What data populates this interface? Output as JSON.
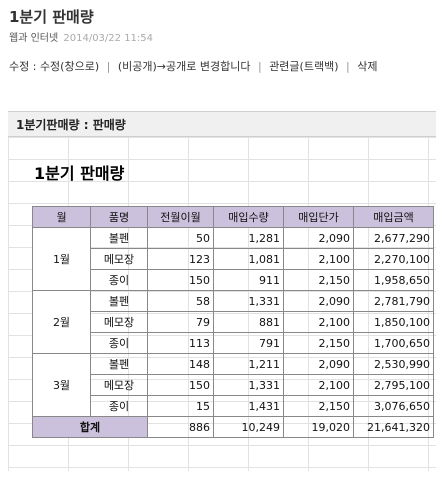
{
  "post": {
    "title": "1분기 판매량",
    "category": "웹과 인터넷",
    "date": "2014/03/22 11:54"
  },
  "actions": {
    "edit_label": "수정 : 수정(창으로)",
    "privacy_label": "(비공개)→공개로 변경합니다",
    "related_label": "관련글(트랙백)",
    "delete_label": "삭제"
  },
  "sheet": {
    "header": "1분기판매량 : 판매량",
    "title": "1분기 판매량",
    "columns": [
      "월",
      "품명",
      "전월이월",
      "매입수량",
      "매입단가",
      "매입금액"
    ],
    "months": [
      "1월",
      "2월",
      "3월"
    ],
    "rows": [
      [
        "볼펜",
        "50",
        "1,281",
        "2,090",
        "2,677,290"
      ],
      [
        "메모장",
        "123",
        "1,081",
        "2,100",
        "2,270,100"
      ],
      [
        "종이",
        "150",
        "911",
        "2,150",
        "1,958,650"
      ],
      [
        "볼펜",
        "58",
        "1,331",
        "2,090",
        "2,781,790"
      ],
      [
        "메모장",
        "79",
        "881",
        "2,100",
        "1,850,100"
      ],
      [
        "종이",
        "113",
        "791",
        "2,150",
        "1,700,650"
      ],
      [
        "볼펜",
        "148",
        "1,211",
        "2,090",
        "2,530,990"
      ],
      [
        "메모장",
        "150",
        "1,331",
        "2,100",
        "2,795,100"
      ],
      [
        "종이",
        "15",
        "1,431",
        "2,150",
        "3,076,650"
      ]
    ],
    "total": {
      "label": "합계",
      "values": [
        "886",
        "10,249",
        "19,020",
        "21,641,320"
      ]
    }
  }
}
